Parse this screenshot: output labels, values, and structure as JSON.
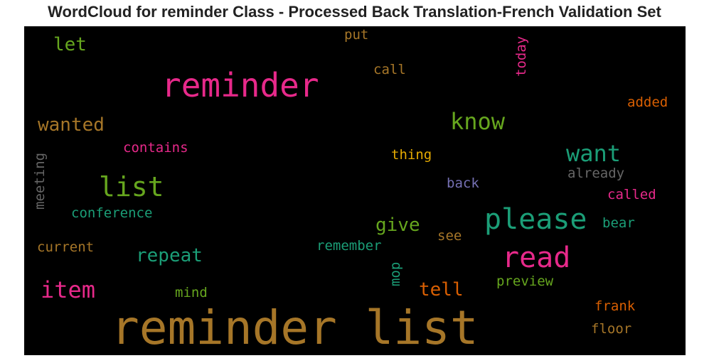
{
  "title": "WordCloud for reminder Class - Processed Back Translation-French Validation Set",
  "chart_data": {
    "type": "wordcloud",
    "background": "#000000",
    "words": [
      {
        "text": "reminder list",
        "color": "#a67628"
      },
      {
        "text": "reminder",
        "color": "#e7298a"
      },
      {
        "text": "read",
        "color": "#e7298a"
      },
      {
        "text": "please",
        "color": "#1b9e77"
      },
      {
        "text": "list",
        "color": "#66a61e"
      },
      {
        "text": "know",
        "color": "#66a61e"
      },
      {
        "text": "want",
        "color": "#1b9e77"
      },
      {
        "text": "item",
        "color": "#e7298a"
      },
      {
        "text": "wanted",
        "color": "#a67628"
      },
      {
        "text": "repeat",
        "color": "#1b9e77"
      },
      {
        "text": "give",
        "color": "#66a61e"
      },
      {
        "text": "tell",
        "color": "#d95f02"
      },
      {
        "text": "let",
        "color": "#66a61e"
      },
      {
        "text": "contains",
        "color": "#e7298a"
      },
      {
        "text": "conference",
        "color": "#1b9e77"
      },
      {
        "text": "current",
        "color": "#a67628"
      },
      {
        "text": "mind",
        "color": "#66a61e"
      },
      {
        "text": "meeting",
        "color": "#666666"
      },
      {
        "text": "put",
        "color": "#a67628"
      },
      {
        "text": "call",
        "color": "#a67628"
      },
      {
        "text": "today",
        "color": "#e7298a"
      },
      {
        "text": "thing",
        "color": "#e6ab02"
      },
      {
        "text": "back",
        "color": "#7570b3"
      },
      {
        "text": "remember",
        "color": "#1b9e77"
      },
      {
        "text": "see",
        "color": "#a67628"
      },
      {
        "text": "mop",
        "color": "#1b9e77"
      },
      {
        "text": "preview",
        "color": "#66a61e"
      },
      {
        "text": "added",
        "color": "#d95f02"
      },
      {
        "text": "already",
        "color": "#666666"
      },
      {
        "text": "called",
        "color": "#e7298a"
      },
      {
        "text": "bear",
        "color": "#1b9e77"
      },
      {
        "text": "frank",
        "color": "#d95f02"
      },
      {
        "text": "floor",
        "color": "#a67628"
      }
    ]
  }
}
